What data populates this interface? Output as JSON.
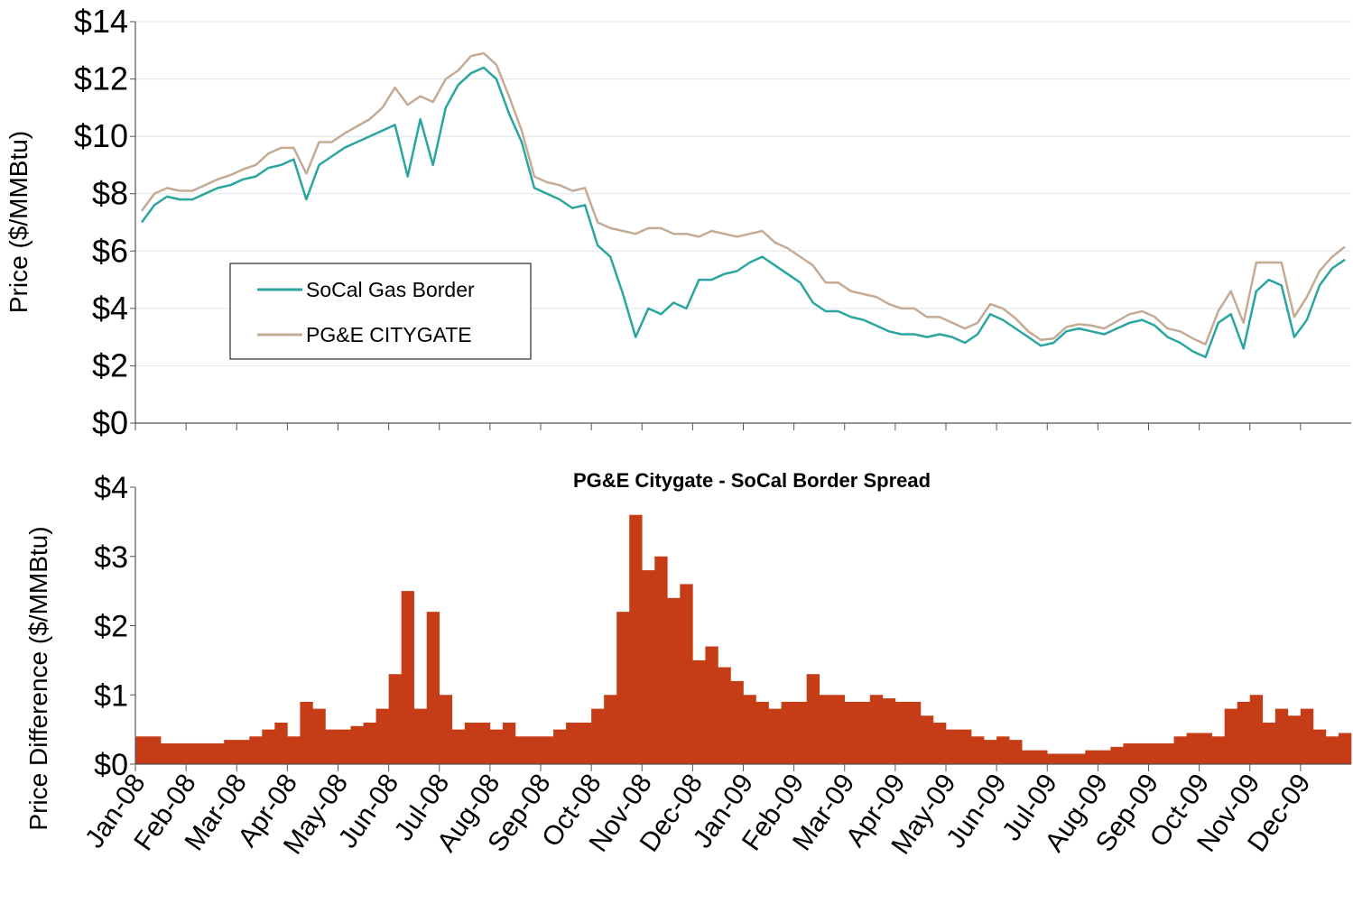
{
  "chart_data": [
    {
      "type": "line",
      "y_label": "Price ($/MMBtu)",
      "ylim": [
        0,
        14
      ],
      "yticks": [
        {
          "value": 0,
          "label": "$0"
        },
        {
          "value": 2,
          "label": "$2"
        },
        {
          "value": 4,
          "label": "$4"
        },
        {
          "value": 6,
          "label": "$6"
        },
        {
          "value": 8,
          "label": "$8"
        },
        {
          "value": 10,
          "label": "$10"
        },
        {
          "value": 12,
          "label": "$12"
        },
        {
          "value": 14,
          "label": "$14"
        }
      ],
      "grid": true,
      "legend": "center left",
      "series": [
        {
          "name": "SoCal Gas Border",
          "color": "#2aa5a0",
          "values": [
            7.0,
            7.6,
            7.9,
            7.8,
            7.8,
            8.0,
            8.2,
            8.3,
            8.5,
            8.6,
            8.9,
            9.0,
            9.2,
            7.8,
            9.0,
            9.3,
            9.6,
            9.8,
            10.0,
            10.2,
            10.4,
            8.6,
            10.6,
            9.0,
            11.0,
            11.8,
            12.2,
            12.4,
            12.0,
            10.8,
            9.8,
            8.2,
            8.0,
            7.8,
            7.5,
            7.6,
            6.2,
            5.8,
            4.5,
            3.0,
            4.0,
            3.8,
            4.2,
            4.0,
            5.0,
            5.0,
            5.2,
            5.3,
            5.6,
            5.8,
            5.5,
            5.2,
            4.9,
            4.2,
            3.9,
            3.9,
            3.7,
            3.6,
            3.4,
            3.2,
            3.1,
            3.1,
            3.0,
            3.1,
            3.0,
            2.8,
            3.1,
            3.8,
            3.6,
            3.3,
            3.0,
            2.7,
            2.8,
            3.2,
            3.3,
            3.2,
            3.1,
            3.3,
            3.5,
            3.6,
            3.4,
            3.0,
            2.8,
            2.5,
            2.3,
            3.5,
            3.8,
            2.6,
            4.6,
            5.0,
            4.8,
            3.0,
            3.6,
            4.8,
            5.4,
            5.7
          ]
        },
        {
          "name": "PG&E CITYGATE",
          "color": "#c4ab95",
          "values": [
            7.4,
            8.0,
            8.2,
            8.1,
            8.1,
            8.3,
            8.5,
            8.65,
            8.85,
            9.0,
            9.4,
            9.6,
            9.6,
            8.7,
            9.8,
            9.8,
            10.1,
            10.35,
            10.6,
            11.0,
            11.7,
            11.1,
            11.4,
            11.2,
            12.0,
            12.3,
            12.8,
            12.9,
            12.5,
            11.4,
            10.2,
            8.6,
            8.4,
            8.3,
            8.1,
            8.2,
            7.0,
            6.8,
            6.7,
            6.6,
            6.8,
            6.8,
            6.6,
            6.6,
            6.5,
            6.7,
            6.6,
            6.5,
            6.6,
            6.7,
            6.3,
            6.1,
            5.8,
            5.5,
            4.9,
            4.9,
            4.6,
            4.5,
            4.4,
            4.15,
            4.0,
            4.0,
            3.7,
            3.7,
            3.5,
            3.3,
            3.5,
            4.15,
            4.0,
            3.65,
            3.2,
            2.9,
            2.95,
            3.35,
            3.45,
            3.4,
            3.3,
            3.55,
            3.8,
            3.9,
            3.7,
            3.3,
            3.2,
            2.95,
            2.75,
            3.9,
            4.6,
            3.5,
            5.6,
            5.6,
            5.6,
            3.7,
            4.4,
            5.3,
            5.8,
            6.15
          ]
        }
      ]
    },
    {
      "type": "bar",
      "title": "PG&E Citygate - SoCal Border Spread",
      "y_label": "Price Difference ($/MMBtu)",
      "ylim": [
        0,
        4
      ],
      "yticks": [
        {
          "value": 0,
          "label": "$0"
        },
        {
          "value": 1,
          "label": "$1"
        },
        {
          "value": 2,
          "label": "$2"
        },
        {
          "value": 3,
          "label": "$3"
        },
        {
          "value": 4,
          "label": "$4"
        }
      ],
      "grid": false,
      "color": "#c63c16",
      "categories": [
        "Jan-08",
        null,
        null,
        null,
        "Feb-08",
        null,
        null,
        null,
        "Mar-08",
        null,
        null,
        null,
        "Apr-08",
        null,
        null,
        null,
        "May-08",
        null,
        null,
        null,
        "Jun-08",
        null,
        null,
        null,
        "Jul-08",
        null,
        null,
        null,
        "Aug-08",
        null,
        null,
        null,
        "Sep-08",
        null,
        null,
        null,
        "Oct-08",
        null,
        null,
        null,
        "Nov-08",
        null,
        null,
        null,
        "Dec-08",
        null,
        null,
        null,
        "Jan-09",
        null,
        null,
        null,
        "Feb-09",
        null,
        null,
        null,
        "Mar-09",
        null,
        null,
        null,
        "Apr-09",
        null,
        null,
        null,
        "May-09",
        null,
        null,
        null,
        "Jun-09",
        null,
        null,
        null,
        "Jul-09",
        null,
        null,
        null,
        "Aug-09",
        null,
        null,
        null,
        "Sep-09",
        null,
        null,
        null,
        "Oct-09",
        null,
        null,
        null,
        "Nov-09",
        null,
        null,
        null,
        "Dec-09",
        null,
        null,
        null
      ],
      "values": [
        0.4,
        0.4,
        0.3,
        0.3,
        0.3,
        0.3,
        0.3,
        0.35,
        0.35,
        0.4,
        0.5,
        0.6,
        0.4,
        0.9,
        0.8,
        0.5,
        0.5,
        0.55,
        0.6,
        0.8,
        1.3,
        2.5,
        0.8,
        2.2,
        1.0,
        0.5,
        0.6,
        0.6,
        0.5,
        0.6,
        0.4,
        0.4,
        0.4,
        0.5,
        0.6,
        0.6,
        0.8,
        1.0,
        2.2,
        3.6,
        2.8,
        3.0,
        2.4,
        2.6,
        1.5,
        1.7,
        1.4,
        1.2,
        1.0,
        0.9,
        0.8,
        0.9,
        0.9,
        1.3,
        1.0,
        1.0,
        0.9,
        0.9,
        1.0,
        0.95,
        0.9,
        0.9,
        0.7,
        0.6,
        0.5,
        0.5,
        0.4,
        0.35,
        0.4,
        0.35,
        0.2,
        0.2,
        0.15,
        0.15,
        0.15,
        0.2,
        0.2,
        0.25,
        0.3,
        0.3,
        0.3,
        0.3,
        0.4,
        0.45,
        0.45,
        0.4,
        0.8,
        0.9,
        1.0,
        0.6,
        0.8,
        0.7,
        0.8,
        0.5,
        0.4,
        0.45
      ]
    }
  ]
}
